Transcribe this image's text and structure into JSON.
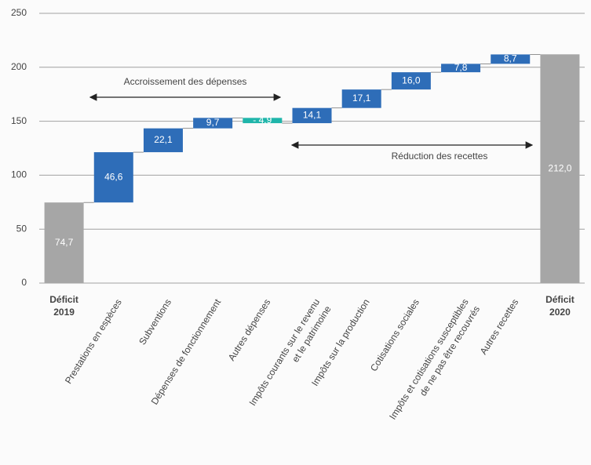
{
  "chart_data": {
    "type": "waterfall",
    "categories": [
      "Déficit\n2019",
      "Prestations en espèces",
      "Subventions",
      "Dépenses de fonctionnement",
      "Autres dépenses",
      "Impôts courants sur le revenu\net le patrimoine",
      "Impôts sur la production",
      "Cotisations sociales",
      "Impôts et cotisations susceptibles\nde ne pas être recouvrés",
      "Autres recettes",
      "Déficit\n2020"
    ],
    "measure": [
      "absolute",
      "relative",
      "relative",
      "relative",
      "relative",
      "relative",
      "relative",
      "relative",
      "relative",
      "relative",
      "absolute"
    ],
    "values": [
      74.7,
      46.6,
      22.1,
      9.7,
      -4.9,
      14.1,
      17.1,
      16.0,
      7.8,
      8.7,
      212.0
    ],
    "value_labels": [
      "74,7",
      "46,6",
      "22,1",
      "9,7",
      "- 4,9",
      "14,1",
      "17,1",
      "16,0",
      "7,8",
      "8,7",
      "212,0"
    ],
    "colors": [
      "#a6a6a6",
      "#2e6db8",
      "#2e6db8",
      "#2e6db8",
      "#1fb5aa",
      "#2e6db8",
      "#2e6db8",
      "#2e6db8",
      "#2e6db8",
      "#2e6db8",
      "#a6a6a6"
    ],
    "annotations": [
      "Accroissement des dépenses",
      "Réduction des recettes"
    ],
    "ylim": [
      0,
      250
    ],
    "yticks": [
      0,
      50,
      100,
      150,
      200,
      250
    ],
    "grid": true
  }
}
